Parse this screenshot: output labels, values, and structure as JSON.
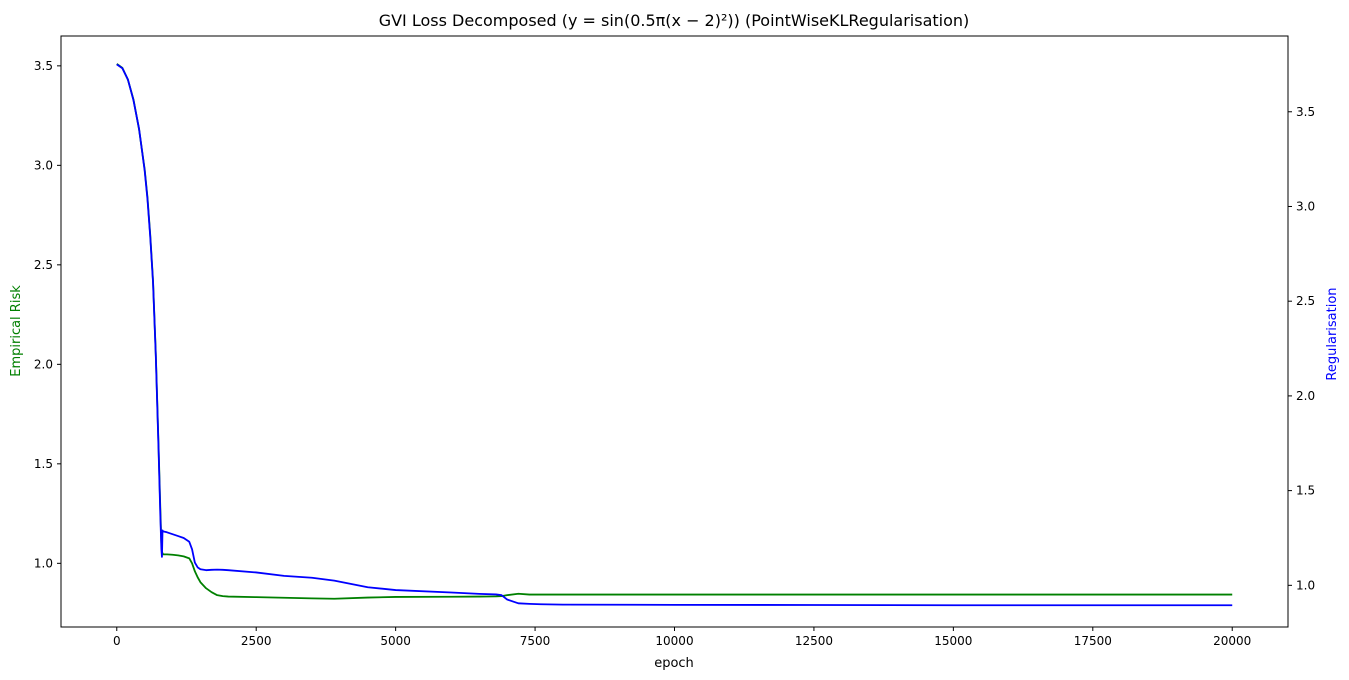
{
  "chart_data": {
    "type": "line",
    "title": "GVI Loss Decomposed (y = sin(0.5π(x − 2)²)) (PointWiseKLRegularisation)",
    "xlabel": "epoch",
    "ylabel_left": "Empirical Risk",
    "ylabel_right": "Regularisation",
    "xlim": [
      -1000,
      21000
    ],
    "ylim_left": [
      0.68,
      3.65
    ],
    "ylim_right": [
      0.78,
      3.9
    ],
    "x_ticks": [
      0,
      2500,
      5000,
      7500,
      10000,
      12500,
      15000,
      17500,
      20000
    ],
    "y_ticks_left": [
      1.0,
      1.5,
      2.0,
      2.5,
      3.0,
      3.5
    ],
    "y_ticks_right": [
      1.0,
      1.5,
      2.0,
      2.5,
      3.0,
      3.5
    ],
    "grid": false,
    "colors": {
      "empirical": "#008000",
      "regularisation": "#0000ff"
    },
    "series": [
      {
        "name": "Empirical Risk",
        "axis": "left",
        "x": [
          0,
          100,
          200,
          300,
          400,
          500,
          550,
          600,
          650,
          700,
          750,
          780,
          800,
          810,
          820,
          830,
          900,
          1000,
          1100,
          1200,
          1300,
          1350,
          1400,
          1450,
          1500,
          1600,
          1700,
          1800,
          1900,
          2000,
          2500,
          3000,
          3500,
          3900,
          4500,
          5000,
          6000,
          6500,
          6800,
          6900,
          7000,
          7200,
          7400,
          7600,
          8000,
          10000,
          12500,
          15000,
          17500,
          20000
        ],
        "y": [
          3.51,
          3.49,
          3.43,
          3.33,
          3.18,
          2.98,
          2.84,
          2.65,
          2.42,
          2.05,
          1.58,
          1.28,
          1.1,
          1.06,
          1.05,
          1.045,
          1.045,
          1.043,
          1.04,
          1.035,
          1.025,
          1.0,
          0.96,
          0.93,
          0.905,
          0.875,
          0.855,
          0.84,
          0.835,
          0.833,
          0.83,
          0.827,
          0.824,
          0.822,
          0.828,
          0.831,
          0.832,
          0.833,
          0.834,
          0.835,
          0.84,
          0.847,
          0.843,
          0.843,
          0.843,
          0.843,
          0.843,
          0.843,
          0.843,
          0.843
        ]
      },
      {
        "name": "Regularisation",
        "axis": "right",
        "x": [
          0,
          100,
          200,
          300,
          400,
          500,
          550,
          600,
          650,
          700,
          750,
          780,
          800,
          810,
          820,
          830,
          900,
          1000,
          1100,
          1200,
          1300,
          1350,
          1400,
          1450,
          1500,
          1600,
          1700,
          1800,
          1900,
          2000,
          2500,
          3000,
          3500,
          3900,
          4500,
          5000,
          6000,
          6500,
          6800,
          6900,
          7000,
          7200,
          7400,
          7600,
          8000,
          10000,
          12500,
          15000,
          17500,
          20000
        ],
        "y": [
          3.75,
          3.73,
          3.67,
          3.56,
          3.41,
          3.19,
          3.04,
          2.84,
          2.6,
          2.21,
          1.71,
          1.38,
          1.19,
          1.15,
          1.29,
          1.285,
          1.28,
          1.27,
          1.26,
          1.25,
          1.23,
          1.19,
          1.12,
          1.095,
          1.085,
          1.08,
          1.082,
          1.083,
          1.082,
          1.08,
          1.068,
          1.05,
          1.04,
          1.025,
          0.99,
          0.975,
          0.962,
          0.955,
          0.952,
          0.948,
          0.925,
          0.905,
          0.902,
          0.9,
          0.898,
          0.897,
          0.896,
          0.895,
          0.895,
          0.895
        ]
      }
    ]
  }
}
